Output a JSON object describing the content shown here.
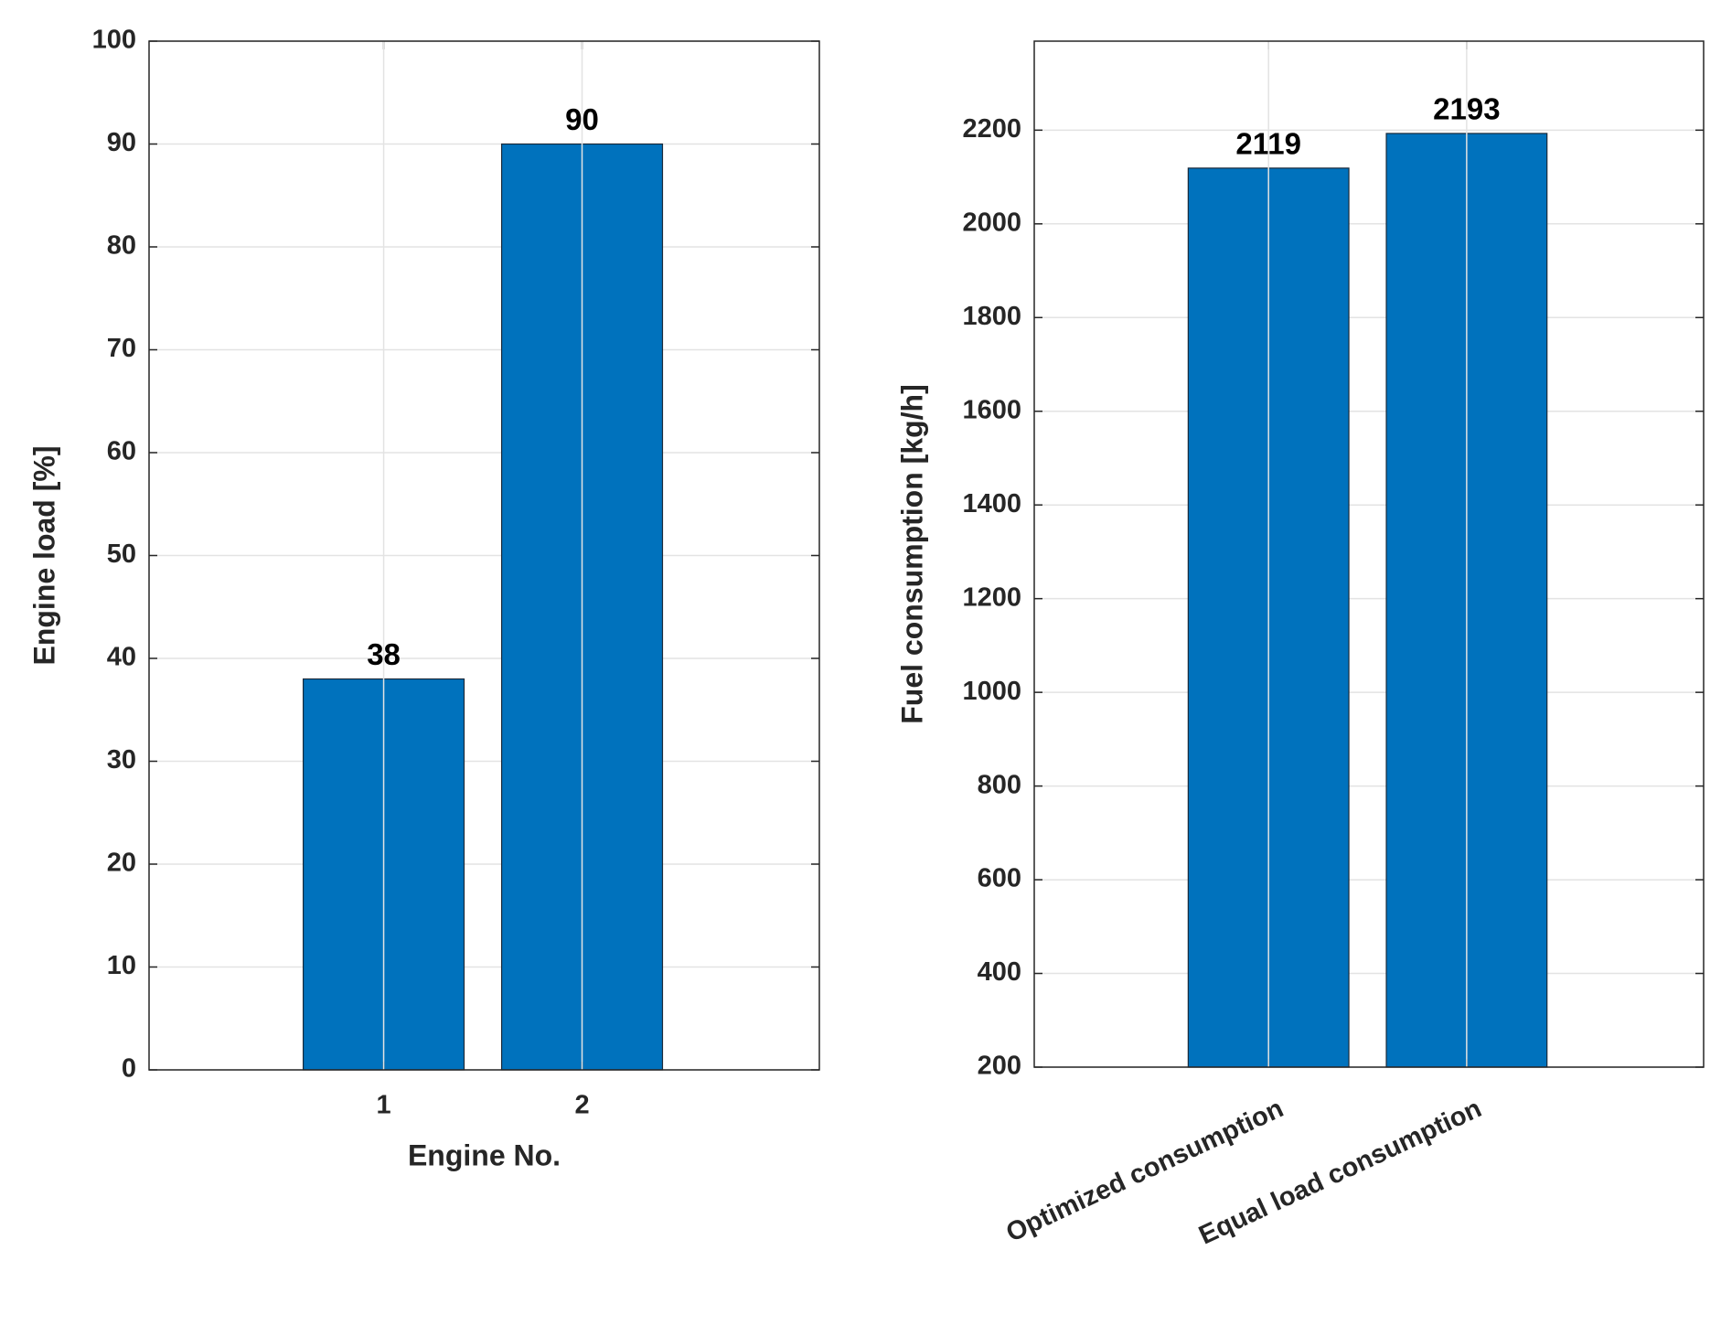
{
  "chart_data": [
    {
      "type": "bar",
      "categories": [
        "1",
        "2"
      ],
      "values": [
        38,
        90
      ],
      "color": "#0072bd",
      "xlabel": "Engine No.",
      "ylabel": "Engine load [%]",
      "ylim": [
        0,
        100
      ],
      "yticks": [
        0,
        10,
        20,
        30,
        40,
        50,
        60,
        70,
        80,
        90,
        100
      ],
      "grid": true,
      "x_label_rotation": 0
    },
    {
      "type": "bar",
      "categories": [
        "Optimized consumption",
        "Equal load consumption"
      ],
      "values": [
        2119,
        2193
      ],
      "color": "#0072bd",
      "ylabel": "Fuel consumption [kg/h]",
      "ylim": [
        200,
        2390
      ],
      "yticks": [
        200,
        400,
        600,
        800,
        1000,
        1200,
        1400,
        1600,
        1800,
        2000,
        2200
      ],
      "grid": true,
      "x_label_rotation": -25
    }
  ]
}
